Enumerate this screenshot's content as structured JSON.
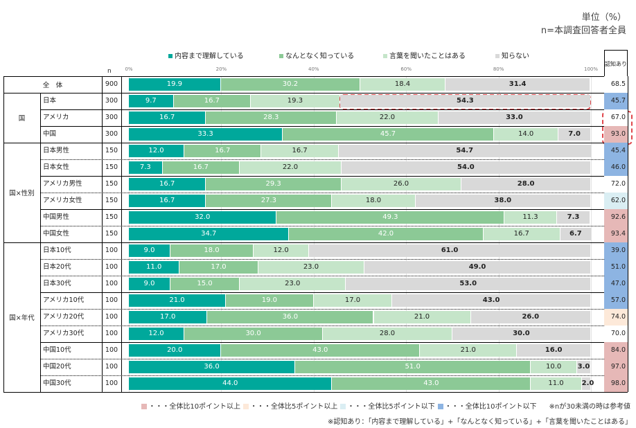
{
  "header": {
    "unit": "単位（%）",
    "base": "n=本調査回答者全員",
    "n_label": "n",
    "aware_label": "認知あり"
  },
  "chart_data": {
    "type": "bar",
    "orientation": "horizontal",
    "stacked": true,
    "xlim": [
      0,
      100
    ],
    "ticks": [
      "0%",
      "20%",
      "40%",
      "60%",
      "80%",
      "100%"
    ],
    "series": [
      {
        "name": "内容まで理解している",
        "color": "#00a89b"
      },
      {
        "name": "なんとなく知っている",
        "color": "#8cc996"
      },
      {
        "name": "言葉を聞いたことはある",
        "color": "#c5e5c9"
      },
      {
        "name": "知らない",
        "color": "#d9d9d9"
      }
    ],
    "rows": [
      {
        "group": "全　体",
        "label": "",
        "n": "900",
        "values": [
          19.9,
          30.2,
          18.4,
          31.4
        ],
        "aware": "68.5",
        "flag": ""
      },
      {
        "group": "国",
        "label": "日本",
        "n": "300",
        "values": [
          9.7,
          16.7,
          19.3,
          54.3
        ],
        "aware": "45.7",
        "flag": "down10"
      },
      {
        "group": "国",
        "label": "アメリカ",
        "n": "300",
        "values": [
          16.7,
          28.3,
          22.0,
          33.0
        ],
        "aware": "67.0",
        "flag": ""
      },
      {
        "group": "国",
        "label": "中国",
        "n": "300",
        "values": [
          33.3,
          45.7,
          14.0,
          7.0
        ],
        "aware": "93.0",
        "flag": "up10"
      },
      {
        "group": "国×性別",
        "label": "日本男性",
        "n": "150",
        "values": [
          12.0,
          16.7,
          16.7,
          54.7
        ],
        "aware": "45.4",
        "flag": "down10"
      },
      {
        "group": "国×性別",
        "label": "日本女性",
        "n": "150",
        "values": [
          7.3,
          16.7,
          22.0,
          54.0
        ],
        "aware": "46.0",
        "flag": "down10"
      },
      {
        "group": "国×性別",
        "label": "アメリカ男性",
        "n": "150",
        "values": [
          16.7,
          29.3,
          26.0,
          28.0
        ],
        "aware": "72.0",
        "flag": ""
      },
      {
        "group": "国×性別",
        "label": "アメリカ女性",
        "n": "150",
        "values": [
          16.7,
          27.3,
          18.0,
          38.0
        ],
        "aware": "62.0",
        "flag": "down5"
      },
      {
        "group": "国×性別",
        "label": "中国男性",
        "n": "150",
        "values": [
          32.0,
          49.3,
          11.3,
          7.3
        ],
        "aware": "92.6",
        "flag": "up10"
      },
      {
        "group": "国×性別",
        "label": "中国女性",
        "n": "150",
        "values": [
          34.7,
          42.0,
          16.7,
          6.7
        ],
        "aware": "93.4",
        "flag": "up10"
      },
      {
        "group": "国×年代",
        "label": "日本10代",
        "n": "100",
        "values": [
          9.0,
          18.0,
          12.0,
          61.0
        ],
        "aware": "39.0",
        "flag": "down10"
      },
      {
        "group": "国×年代",
        "label": "日本20代",
        "n": "100",
        "values": [
          11.0,
          17.0,
          23.0,
          49.0
        ],
        "aware": "51.0",
        "flag": "down10"
      },
      {
        "group": "国×年代",
        "label": "日本30代",
        "n": "100",
        "values": [
          9.0,
          15.0,
          23.0,
          53.0
        ],
        "aware": "47.0",
        "flag": "down10"
      },
      {
        "group": "国×年代",
        "label": "アメリカ10代",
        "n": "100",
        "values": [
          21.0,
          19.0,
          17.0,
          43.0
        ],
        "aware": "57.0",
        "flag": "down10"
      },
      {
        "group": "国×年代",
        "label": "アメリカ20代",
        "n": "100",
        "values": [
          17.0,
          36.0,
          21.0,
          26.0
        ],
        "aware": "74.0",
        "flag": "up5"
      },
      {
        "group": "国×年代",
        "label": "アメリカ30代",
        "n": "100",
        "values": [
          12.0,
          30.0,
          28.0,
          30.0
        ],
        "aware": "70.0",
        "flag": ""
      },
      {
        "group": "国×年代",
        "label": "中国10代",
        "n": "100",
        "values": [
          20.0,
          43.0,
          21.0,
          16.0
        ],
        "aware": "84.0",
        "flag": "up10"
      },
      {
        "group": "国×年代",
        "label": "中国20代",
        "n": "100",
        "values": [
          36.0,
          51.0,
          10.0,
          3.0
        ],
        "aware": "97.0",
        "flag": "up10"
      },
      {
        "group": "国×年代",
        "label": "中国30代",
        "n": "100",
        "values": [
          44.0,
          43.0,
          11.0,
          2.0
        ],
        "aware": "98.0",
        "flag": "up10"
      }
    ]
  },
  "flag_colors": {
    "up10": "#e6b8b7",
    "up5": "#fde9d9",
    "down5": "#daeef3",
    "down10": "#8db4e2"
  },
  "footer": {
    "legend": [
      {
        "flag": "up10",
        "text": "・・・全体比10ポイント以上"
      },
      {
        "flag": "up5",
        "text": "・・・全体比5ポイント以上"
      },
      {
        "flag": "down5",
        "text": "・・・全体比5ポイント以下"
      },
      {
        "flag": "down10",
        "text": "・・・全体比10ポイント以下"
      }
    ],
    "note1": "※nが30未満の時は参考値",
    "note2": "※認知あり：「内容まで理解している」+「なんとなく知っている」+「言葉を聞いたことはある」"
  }
}
